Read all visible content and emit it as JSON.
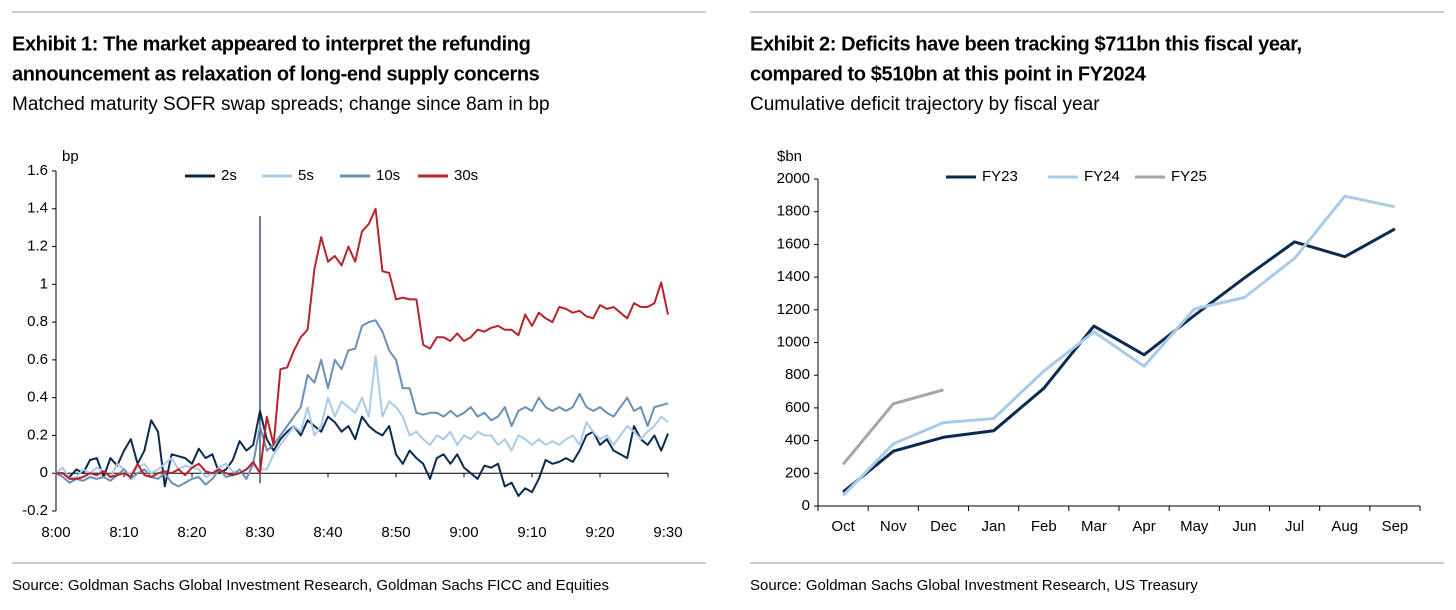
{
  "chart_data": [
    {
      "type": "line",
      "title": [
        "Exhibit 1: The market appeared to interpret the refunding",
        "announcement as relaxation of long-end supply concerns"
      ],
      "subtitle": "Matched maturity SOFR swap spreads; change since 8am in bp",
      "y_label": "bp",
      "source": "Source: Goldman Sachs Global Investment Research, Goldman Sachs FICC and Equities",
      "legend": "top",
      "x": [
        0,
        1,
        2,
        3,
        4,
        5,
        6,
        7,
        8,
        9,
        10,
        11,
        12,
        13,
        14,
        15,
        16,
        17,
        18,
        19,
        20,
        21,
        22,
        23,
        24,
        25,
        26,
        27,
        28,
        29,
        30,
        31,
        32,
        33,
        34,
        35,
        36,
        37,
        38,
        39,
        40,
        41,
        42,
        43,
        44,
        45,
        46,
        47,
        48,
        49,
        50,
        51,
        52,
        53,
        54,
        55,
        56,
        57,
        58,
        59,
        60,
        61,
        62,
        63,
        64,
        65,
        66,
        67,
        68,
        69,
        70,
        71,
        72,
        73,
        74,
        75,
        76,
        77,
        78,
        79,
        80,
        81,
        82,
        83,
        84,
        85,
        86,
        87,
        88,
        89,
        90
      ],
      "xlim": [
        0,
        90
      ],
      "xticks": [
        {
          "value": 0,
          "label": "8:00"
        },
        {
          "value": 10,
          "label": "8:10"
        },
        {
          "value": 20,
          "label": "8:20"
        },
        {
          "value": 30,
          "label": "8:30"
        },
        {
          "value": 40,
          "label": "8:40"
        },
        {
          "value": 50,
          "label": "8:50"
        },
        {
          "value": 60,
          "label": "9:00"
        },
        {
          "value": 70,
          "label": "9:10"
        },
        {
          "value": 80,
          "label": "9:20"
        },
        {
          "value": 90,
          "label": "9:30"
        }
      ],
      "vline": 30,
      "ylim": [
        -0.2,
        1.6
      ],
      "yticks": [
        -0.2,
        0,
        0.2,
        0.4,
        0.6,
        0.8,
        1,
        1.2,
        1.4,
        1.6
      ],
      "series": [
        {
          "name": "2s",
          "color": "#0b2a4f",
          "values": [
            0,
            0,
            -0.02,
            0.02,
            0,
            0.07,
            0.08,
            -0.02,
            0.08,
            0.04,
            0.12,
            0.18,
            0.05,
            0.12,
            0.28,
            0.22,
            -0.07,
            0.1,
            0.09,
            0.08,
            0.05,
            0.13,
            0.08,
            0.1,
            0,
            0.02,
            0.07,
            0.17,
            0.12,
            0.15,
            0.33,
            0.18,
            0.12,
            0.18,
            0.22,
            0.25,
            0.2,
            0.28,
            0.25,
            0.22,
            0.3,
            0.27,
            0.22,
            0.25,
            0.18,
            0.3,
            0.25,
            0.22,
            0.2,
            0.25,
            0.1,
            0.05,
            0.12,
            0.08,
            0.05,
            -0.03,
            0.08,
            0.1,
            0.05,
            0.1,
            0.03,
            0,
            -0.03,
            0.04,
            0.03,
            0.05,
            -0.07,
            -0.05,
            -0.12,
            -0.08,
            -0.1,
            -0.03,
            0.07,
            0.05,
            0.06,
            0.08,
            0.06,
            0.12,
            0.2,
            0.22,
            0.15,
            0.18,
            0.12,
            0.1,
            0.08,
            0.25,
            0.18,
            0.15,
            0.2,
            0.12,
            0.21
          ]
        },
        {
          "name": "5s",
          "color": "#a9cbe8",
          "values": [
            0,
            0.03,
            -0.03,
            -0.02,
            0.02,
            0,
            0.03,
            0.01,
            -0.02,
            0.05,
            0.02,
            -0.01,
            0.03,
            0.05,
            0,
            0.02,
            0.05,
            0.08,
            0.02,
            0.04,
            0.03,
            0.02,
            -0.02,
            0,
            0.03,
            0.05,
            0.01,
            0,
            0.02,
            0.04,
            0.02,
            0.02,
            0.1,
            0.15,
            0.2,
            0.25,
            0.22,
            0.35,
            0.2,
            0.25,
            0.4,
            0.3,
            0.38,
            0.35,
            0.32,
            0.4,
            0.3,
            0.62,
            0.3,
            0.38,
            0.35,
            0.3,
            0.2,
            0.22,
            0.18,
            0.15,
            0.2,
            0.18,
            0.22,
            0.15,
            0.2,
            0.18,
            0.22,
            0.2,
            0.2,
            0.15,
            0.18,
            0.12,
            0.2,
            0.18,
            0.15,
            0.18,
            0.15,
            0.17,
            0.15,
            0.18,
            0.2,
            0.15,
            0.27,
            0.22,
            0.18,
            0.2,
            0.15,
            0.2,
            0.25,
            0.22,
            0.18,
            0.22,
            0.25,
            0.3,
            0.27
          ]
        },
        {
          "name": "10s",
          "color": "#6b8fb5",
          "values": [
            0,
            -0.02,
            -0.05,
            -0.03,
            -0.04,
            -0.02,
            -0.03,
            -0.02,
            -0.04,
            -0.01,
            0.02,
            -0.03,
            0,
            0.02,
            -0.02,
            -0.03,
            0,
            -0.05,
            -0.07,
            -0.05,
            -0.03,
            -0.02,
            -0.06,
            -0.03,
            0.02,
            -0.02,
            -0.01,
            0.02,
            -0.03,
            0.05,
            0.25,
            0.12,
            0.15,
            0.2,
            0.25,
            0.3,
            0.35,
            0.52,
            0.48,
            0.6,
            0.45,
            0.6,
            0.55,
            0.65,
            0.66,
            0.78,
            0.8,
            0.81,
            0.75,
            0.65,
            0.6,
            0.45,
            0.45,
            0.32,
            0.31,
            0.32,
            0.32,
            0.3,
            0.33,
            0.3,
            0.32,
            0.35,
            0.3,
            0.32,
            0.28,
            0.3,
            0.35,
            0.25,
            0.33,
            0.35,
            0.33,
            0.4,
            0.35,
            0.33,
            0.35,
            0.33,
            0.35,
            0.42,
            0.35,
            0.33,
            0.35,
            0.32,
            0.3,
            0.35,
            0.4,
            0.33,
            0.35,
            0.25,
            0.35,
            0.36,
            0.37
          ]
        },
        {
          "name": "30s",
          "color": "#b5252b",
          "values": [
            0,
            0,
            -0.03,
            -0.03,
            -0.02,
            0,
            -0.01,
            0.01,
            -0.02,
            -0.01,
            0,
            -0.02,
            0.05,
            -0.01,
            -0.02,
            0,
            0.01,
            0,
            0.02,
            -0.01,
            0.03,
            0.05,
            0.01,
            0,
            0.02,
            0,
            -0.01,
            0,
            0.02,
            0.06,
            0,
            0.3,
            0.15,
            0.55,
            0.56,
            0.65,
            0.72,
            0.76,
            1.08,
            1.25,
            1.12,
            1.15,
            1.1,
            1.2,
            1.12,
            1.28,
            1.32,
            1.4,
            1.07,
            1.06,
            0.92,
            0.93,
            0.92,
            0.92,
            0.68,
            0.66,
            0.72,
            0.72,
            0.7,
            0.74,
            0.7,
            0.72,
            0.76,
            0.75,
            0.77,
            0.78,
            0.76,
            0.76,
            0.73,
            0.84,
            0.78,
            0.85,
            0.82,
            0.8,
            0.88,
            0.87,
            0.85,
            0.86,
            0.83,
            0.82,
            0.89,
            0.87,
            0.88,
            0.85,
            0.82,
            0.9,
            0.88,
            0.88,
            0.9,
            1.01,
            0.84
          ]
        }
      ]
    },
    {
      "type": "line",
      "title": [
        "Exhibit 2: Deficits have been tracking $711bn this fiscal year,",
        "compared to $510bn at this point in FY2024"
      ],
      "subtitle": "Cumulative deficit trajectory by fiscal year",
      "y_label": "$bn",
      "source": "Source: Goldman Sachs Global Investment Research, US Treasury",
      "legend": "top",
      "categories": [
        "Oct",
        "Nov",
        "Dec",
        "Jan",
        "Feb",
        "Mar",
        "Apr",
        "May",
        "Jun",
        "Jul",
        "Aug",
        "Sep"
      ],
      "ylim": [
        0,
        2000
      ],
      "yticks": [
        0,
        200,
        400,
        600,
        800,
        1000,
        1200,
        1400,
        1600,
        1800,
        2000
      ],
      "series": [
        {
          "name": "FY23",
          "color": "#0b2a4f",
          "values": [
            85,
            335,
            420,
            460,
            720,
            1100,
            925,
            1165,
            1395,
            1615,
            1525,
            1695
          ]
        },
        {
          "name": "FY24",
          "color": "#a9cbe8",
          "values": [
            65,
            380,
            510,
            535,
            825,
            1065,
            855,
            1205,
            1275,
            1515,
            1895,
            1830
          ]
        },
        {
          "name": "FY25",
          "color": "#a6a6a6",
          "values": [
            255,
            625,
            711,
            null,
            null,
            null,
            null,
            null,
            null,
            null,
            null,
            null
          ]
        }
      ]
    }
  ]
}
